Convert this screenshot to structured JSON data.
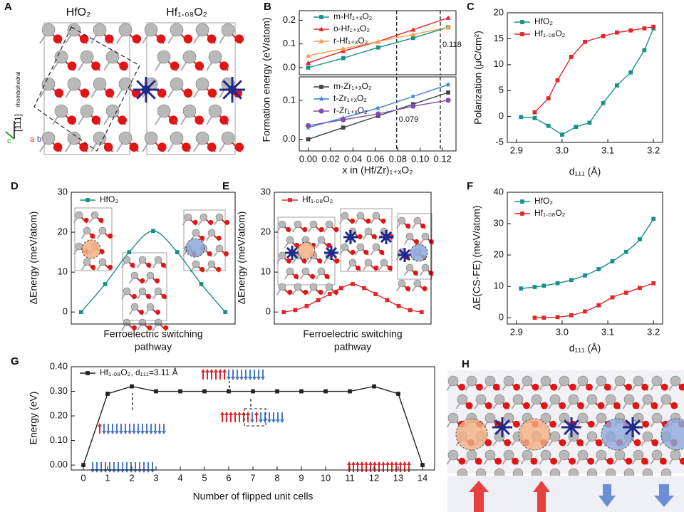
{
  "images": [
    {
      "letter": "A",
      "labels": [
        "HfO₂",
        "Hf₁.₀₈O₂",
        "[111]",
        "rhombohedral",
        "a",
        "b",
        "c"
      ]
    },
    {
      "letter": "H"
    }
  ],
  "chart_data": [
    {
      "type": "line",
      "letter": "B",
      "ylabel": "Formation energy (eV/atom)",
      "xlim": [
        -0.008,
        0.132
      ],
      "ylim": [
        -0.03,
        0.24
      ],
      "yticks": [
        {
          "value": 0,
          "label": "0.0"
        },
        {
          "value": 0.1,
          "label": "0.1"
        },
        {
          "value": 0.2,
          "label": "0.2"
        }
      ],
      "x": [
        0,
        0.03125,
        0.0625,
        0.09375,
        0.125
      ],
      "series": [
        {
          "name": "m-Hf₁₊ₓO₂",
          "color": "#17908a",
          "marker": "square",
          "values": [
            0.0,
            0.04,
            0.085,
            0.125,
            0.17
          ]
        },
        {
          "name": "o-Hf₁₊ₓO₂",
          "color": "#e3262b",
          "marker": "triangle",
          "values": [
            0.02,
            0.07,
            0.11,
            0.16,
            0.21
          ]
        },
        {
          "name": "r-Hf₁₊ₓO₂",
          "color": "#f5a04a",
          "marker": "triangle",
          "values": [
            0.05,
            0.08,
            0.11,
            0.14,
            0.17
          ]
        }
      ],
      "vlines": [
        {
          "value": 0.079
        },
        {
          "value": 0.118,
          "label": "0.118"
        }
      ],
      "legend": "upper left"
    },
    {
      "type": "line",
      "xlabel": "x in (Hf/Zr)₁₊ₓO₂",
      "xlim": [
        -0.008,
        0.132
      ],
      "ylim": [
        -0.03,
        0.16
      ],
      "yticks": [
        {
          "value": 0,
          "label": "0.0"
        },
        {
          "value": 0.1,
          "label": "0.1"
        }
      ],
      "xticks": [
        {
          "value": 0,
          "label": "0.00"
        },
        {
          "value": 0.02,
          "label": "0.02"
        },
        {
          "value": 0.04,
          "label": "0.04"
        },
        {
          "value": 0.06,
          "label": "0.06"
        },
        {
          "value": 0.08,
          "label": "0.08"
        },
        {
          "value": 0.1,
          "label": "0.10"
        },
        {
          "value": 0.12,
          "label": "0.12"
        }
      ],
      "x": [
        0,
        0.03125,
        0.0625,
        0.09375,
        0.125
      ],
      "series": [
        {
          "name": "m-Zr₁₊ₓO₂",
          "color": "#444444",
          "marker": "square",
          "values": [
            0.0,
            0.03,
            0.06,
            0.09,
            0.12
          ]
        },
        {
          "name": "t-Zr₁₊ₓO₂",
          "color": "#3a7fd5",
          "marker": "star",
          "values": [
            0.03,
            0.055,
            0.08,
            0.11,
            0.14
          ]
        },
        {
          "name": "r-Zr₁₊ₓO₂",
          "color": "#7d4fb3",
          "marker": "circle",
          "values": [
            0.035,
            0.05,
            0.065,
            0.085,
            0.1
          ]
        }
      ],
      "vlines": [
        {
          "value": 0.079,
          "label": "0.079"
        },
        {
          "value": 0.118
        }
      ],
      "legend": "upper left"
    },
    {
      "type": "line",
      "letter": "C",
      "ylabel": "Polarization (μC/cm²)",
      "xlabel": "d₁₁₁ (Å)",
      "xlim": [
        2.88,
        3.22
      ],
      "ylim": [
        -5,
        20
      ],
      "yticks": [
        -5,
        0,
        5,
        10,
        15,
        20
      ],
      "xticks": [
        2.9,
        {
          "value": 3,
          "label": "3.0"
        },
        3.1,
        3.2
      ],
      "series": [
        {
          "name": "HfO₂",
          "color": "#17908a",
          "marker": "square",
          "x": [
            2.91,
            2.94,
            2.97,
            3.0,
            3.03,
            3.06,
            3.09,
            3.12,
            3.15,
            3.18,
            3.2
          ],
          "values": [
            -0.1,
            -0.3,
            -1.8,
            -3.5,
            -2.0,
            -1.2,
            2.6,
            6,
            8.5,
            12.8,
            17
          ]
        },
        {
          "name": "Hf₁.₀₈O₂",
          "color": "#e3262b",
          "marker": "square",
          "x": [
            2.94,
            2.97,
            2.99,
            3.02,
            3.05,
            3.09,
            3.12,
            3.15,
            3.18,
            3.2
          ],
          "values": [
            0.8,
            3.5,
            7,
            11.5,
            14.4,
            15.5,
            16.2,
            16.6,
            17,
            17.3
          ]
        }
      ],
      "legend": "upper left"
    },
    {
      "type": "line",
      "letter": "D",
      "ylabel": "ΔEnergy (meV/atom)",
      "xlabel": [
        "Ferroelectric switching",
        "pathway"
      ],
      "ylim": [
        -3,
        30
      ],
      "yticks": [
        0,
        10,
        20,
        30
      ],
      "smooth": true,
      "series": [
        {
          "name": "HfO₂",
          "color": "#17908a",
          "marker": "square",
          "values": [
            0,
            7,
            15,
            20.3,
            15,
            7,
            0
          ]
        }
      ],
      "legend": "upper left"
    },
    {
      "type": "line",
      "letter": "E",
      "ylabel": "ΔEnergy (meV/atom)",
      "xlabel": [
        "Ferroelectric switching",
        "pathway"
      ],
      "ylim": [
        -3,
        30
      ],
      "yticks": [
        0,
        10,
        20,
        30
      ],
      "smooth": true,
      "series": [
        {
          "name": "Hf₁.₀₈O₂",
          "color": "#e3262b",
          "marker": "square",
          "values": [
            0,
            0.5,
            1.5,
            3,
            4.5,
            6,
            7,
            6,
            4.5,
            3,
            1.5,
            0.5,
            0
          ]
        }
      ],
      "legend": "upper left"
    },
    {
      "type": "line",
      "letter": "F",
      "ylabel": "ΔE(CS-FE) (meV/atom)",
      "xlabel": "d₁₁₁ (Å)",
      "xlim": [
        2.88,
        3.22
      ],
      "ylim": [
        -2,
        40
      ],
      "yticks": [
        0,
        10,
        20,
        30,
        40
      ],
      "xticks": [
        2.9,
        {
          "value": 3,
          "label": "3.0"
        },
        3.1,
        3.2
      ],
      "smooth": true,
      "series": [
        {
          "name": "HfO₂",
          "color": "#17908a",
          "marker": "square",
          "x": [
            2.91,
            2.94,
            2.96,
            2.99,
            3.02,
            3.05,
            3.08,
            3.11,
            3.14,
            3.17,
            3.2
          ],
          "values": [
            9.3,
            9.8,
            10.2,
            11,
            12,
            13.5,
            15.5,
            18,
            21,
            25,
            31.5
          ]
        },
        {
          "name": "Hf₁.₀₈O₂",
          "color": "#e3262b",
          "marker": "square",
          "x": [
            2.94,
            2.96,
            2.99,
            3.02,
            3.05,
            3.08,
            3.11,
            3.14,
            3.17,
            3.2
          ],
          "values": [
            0,
            0,
            0.2,
            0.8,
            2,
            4,
            6.5,
            8,
            9.5,
            11
          ]
        }
      ],
      "legend": "upper left"
    },
    {
      "type": "line",
      "letter": "G",
      "ylabel": "Energy (eV)",
      "xlabel": "Number of flipped unit cells",
      "xlim": [
        -0.5,
        14.5
      ],
      "ylim": [
        -0.02,
        0.4
      ],
      "yticks": [
        {
          "value": 0,
          "label": "0.00"
        },
        {
          "value": 0.1,
          "label": "0.10"
        },
        {
          "value": 0.2,
          "label": "0.20"
        },
        {
          "value": 0.3,
          "label": "0.30"
        },
        {
          "value": 0.4,
          "label": "0.40"
        }
      ],
      "xticks": [
        0,
        1,
        2,
        3,
        4,
        5,
        6,
        7,
        8,
        9,
        10,
        11,
        12,
        13,
        14
      ],
      "x": [
        0,
        1,
        2,
        3,
        4,
        5,
        6,
        7,
        8,
        9,
        10,
        11,
        12,
        13,
        14
      ],
      "series": [
        {
          "name": "Hf₁.₀₈O₂, d₁₁₁=3.11 Å",
          "color": "#222222",
          "marker": "square",
          "values": [
            0,
            0.29,
            0.32,
            0.3,
            0.3,
            0.3,
            0.3,
            0.3,
            0.3,
            0.3,
            0.3,
            0.3,
            0.32,
            0.29,
            0
          ]
        }
      ],
      "legend": "upper left"
    }
  ]
}
